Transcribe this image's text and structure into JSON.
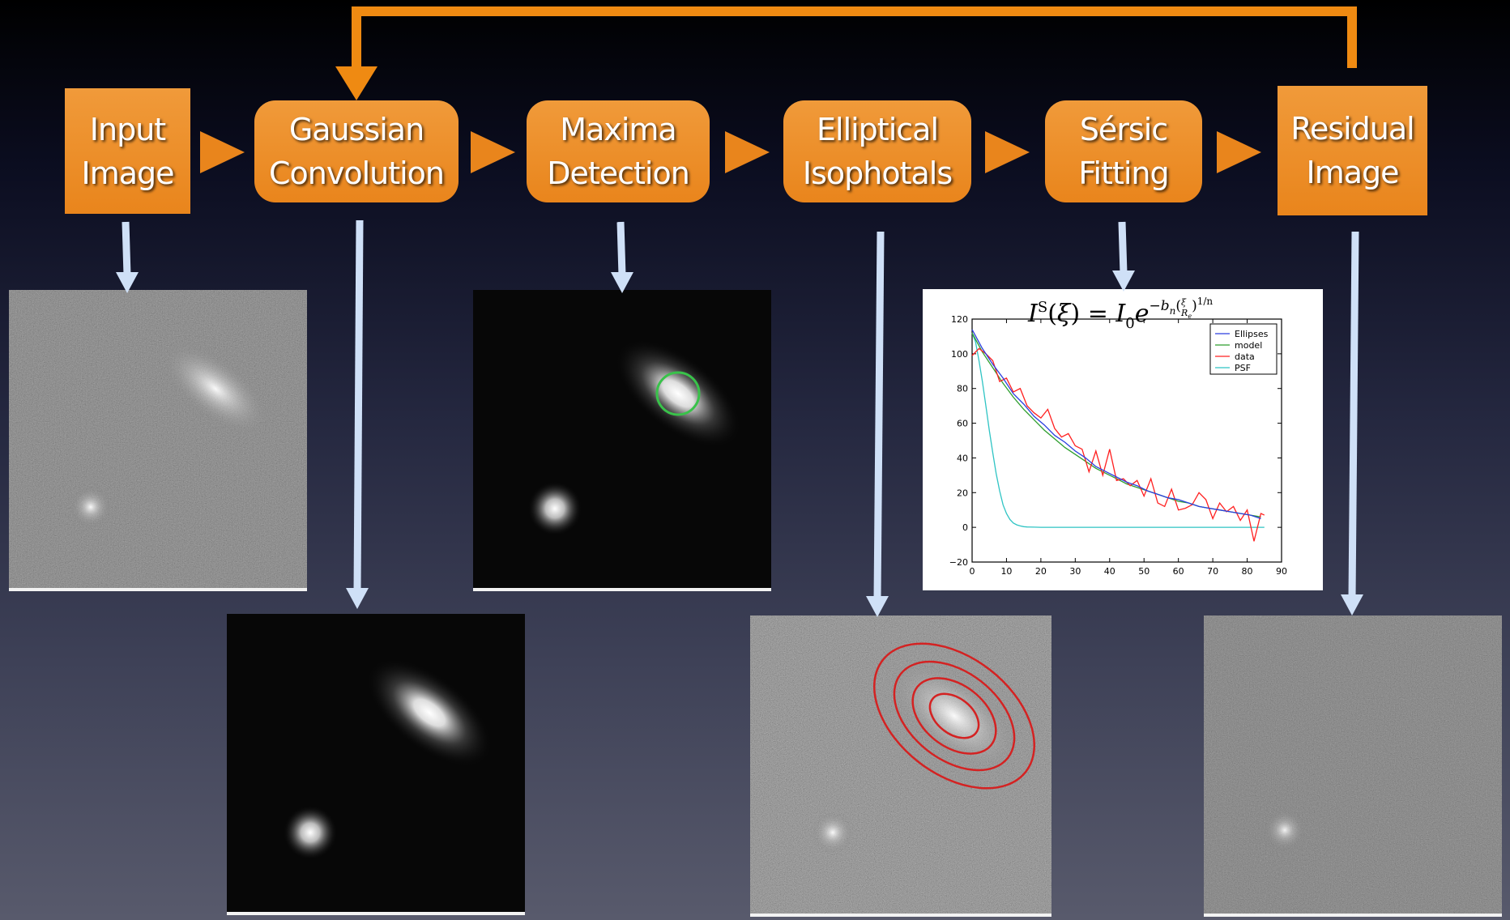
{
  "steps": [
    {
      "line1": "Input",
      "line2": "Image"
    },
    {
      "line1": "Gaussian",
      "line2": "Convolution"
    },
    {
      "line1": "Maxima",
      "line2": "Detection"
    },
    {
      "line1": "Elliptical",
      "line2": "Isophotals"
    },
    {
      "line1": "Sérsic",
      "line2": "Fitting"
    },
    {
      "line1": "Residual",
      "line2": "Image"
    }
  ],
  "colors": {
    "step_box": "#e9851c",
    "flow_arrow": "#ef8a12",
    "down_arrow": "#cfe0f7",
    "isophote": "#d42222",
    "maxima_circle": "#39c24a"
  },
  "chart_data": {
    "type": "line",
    "title": "I^S(ξ) = I_0 e^{-b_n (ξ/R_e)^{1/n}}",
    "xlabel": "",
    "ylabel": "",
    "xlim": [
      0,
      90
    ],
    "ylim": [
      -20,
      120
    ],
    "xticks": [
      0,
      10,
      20,
      30,
      40,
      50,
      60,
      70,
      80,
      90
    ],
    "yticks": [
      -20,
      0,
      20,
      40,
      60,
      80,
      100,
      120
    ],
    "legend_position": "top-right",
    "series": [
      {
        "name": "Ellipses",
        "color": "#2a3fe0",
        "x": [
          0,
          3,
          6,
          9,
          12,
          15,
          18,
          21,
          24,
          27,
          30,
          33,
          36,
          39,
          42,
          45,
          48,
          51,
          54,
          57,
          60,
          63,
          66,
          69,
          72,
          75,
          78,
          81,
          84
        ],
        "y": [
          114,
          103,
          94,
          86,
          77,
          71,
          64,
          59,
          53,
          49,
          44,
          40,
          35,
          32,
          29,
          26,
          24,
          21,
          19,
          17,
          16,
          14,
          12,
          11,
          10,
          9,
          8,
          7,
          5
        ]
      },
      {
        "name": "model",
        "color": "#2e9e2e",
        "x": [
          0,
          3,
          6,
          9,
          12,
          15,
          18,
          21,
          24,
          27,
          30,
          33,
          36,
          39,
          42,
          45,
          48,
          51,
          54,
          57,
          60,
          63,
          66,
          69,
          72,
          75,
          78,
          81,
          84
        ],
        "y": [
          112,
          101,
          92,
          83,
          75,
          68,
          62,
          56,
          51,
          46,
          42,
          38,
          34,
          31,
          28,
          25,
          23,
          21,
          19,
          17,
          15,
          14,
          12,
          11,
          10,
          9,
          8,
          7,
          6
        ]
      },
      {
        "name": "data",
        "color": "#ff2020",
        "x": [
          0,
          2,
          4,
          6,
          8,
          10,
          12,
          14,
          16,
          18,
          20,
          22,
          24,
          26,
          28,
          30,
          32,
          34,
          36,
          38,
          40,
          42,
          44,
          46,
          48,
          50,
          52,
          54,
          56,
          58,
          60,
          62,
          64,
          66,
          68,
          70,
          72,
          74,
          76,
          78,
          80,
          82,
          84,
          85
        ],
        "y": [
          99,
          103,
          100,
          96,
          84,
          86,
          78,
          80,
          70,
          66,
          63,
          68,
          57,
          52,
          54,
          47,
          45,
          32,
          44,
          30,
          45,
          27,
          28,
          24,
          27,
          18,
          28,
          14,
          12,
          22,
          10,
          11,
          13,
          20,
          16,
          5,
          14,
          9,
          12,
          4,
          10,
          -8,
          8,
          7
        ]
      },
      {
        "name": "PSF",
        "color": "#2fc4c4",
        "x": [
          0,
          1,
          2,
          3,
          4,
          5,
          6,
          7,
          8,
          9,
          10,
          11,
          12,
          13,
          14,
          15,
          16,
          18,
          20,
          25,
          30,
          40,
          50,
          60,
          70,
          80,
          85
        ],
        "y": [
          112,
          107,
          96,
          84,
          70,
          56,
          43,
          31,
          21,
          13,
          8,
          4.5,
          2.5,
          1.4,
          0.8,
          0.4,
          0.2,
          0.1,
          0,
          0,
          0,
          0,
          0,
          0,
          0,
          0,
          0
        ]
      }
    ]
  }
}
